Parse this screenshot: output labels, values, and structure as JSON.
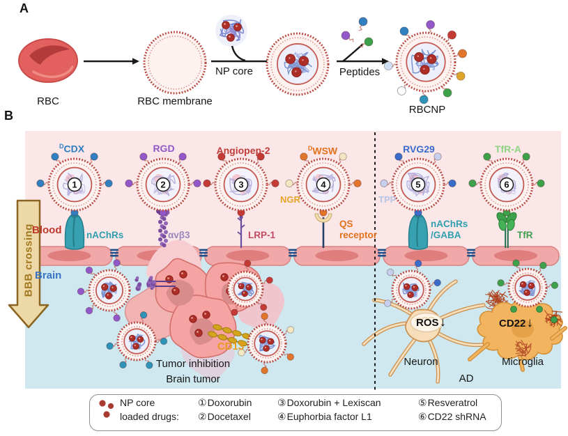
{
  "figure": {
    "panel_a_label": "A",
    "panel_b_label": "B"
  },
  "panel_a": {
    "rbc_label": "RBC",
    "rbc_membrane_label": "RBC membrane",
    "np_core_label": "NP core",
    "peptides_label": "Peptides",
    "rbcnp_label": "RBCNP"
  },
  "panel_b": {
    "bbb_arrow_label": "BBB crossing",
    "blood_label": "Blood",
    "brain_label": "Brain",
    "blood_color": "#c0392b",
    "brain_color": "#3a72c4",
    "nanoparticles": [
      {
        "number": "1",
        "circled": "①",
        "ligand_sup": "D",
        "ligand": "CDX",
        "ligand_color": "#2b7ec1",
        "peptide_color": "#2f7fc1",
        "receptor_line1": "nAChRs",
        "receptor_line2": "",
        "receptor_color": "#2e9fae",
        "receptor_type": "nachr"
      },
      {
        "number": "2",
        "circled": "②",
        "ligand_sup": "",
        "ligand": "RGD",
        "ligand_color": "#9257c8",
        "peptide_color": "#9257c8",
        "receptor_line1": "αvβ3",
        "receptor_line2": "",
        "receptor_color": "#9a87bd",
        "receptor_type": "avb3"
      },
      {
        "number": "3",
        "circled": "③",
        "ligand_sup": "",
        "ligand": "Angiopep-2",
        "ligand_color": "#c23b38",
        "peptide_color": "#c43a34",
        "receptor_line1": "LRP-1",
        "receptor_line2": "",
        "receptor_color": "#c24b62",
        "receptor_type": "lrp1"
      },
      {
        "number": "4",
        "circled": "④",
        "ligand_sup": "D",
        "ligand": "WSW",
        "ligand_color": "#e2711d",
        "peptide_color": "#e2752c",
        "peptide_color2": "#f4e7c3",
        "secondary_ligand": "NGR",
        "secondary_color": "#e5a426",
        "receptor_line1": "QS",
        "receptor_line2": "receptor",
        "receptor_color": "#e2711d",
        "receptor_type": "qs"
      },
      {
        "number": "5",
        "circled": "⑤",
        "ligand_sup": "",
        "ligand": "RVG29",
        "ligand_color": "#3a6ccc",
        "peptide_color": "#3a6ccc",
        "peptide_color2": "#c6cfeb",
        "secondary_ligand": "TPP",
        "secondary_color": "#b8c3e6",
        "receptor_line1": "nAChRs",
        "receptor_line2": "/GABA",
        "receptor_color": "#2e9fae",
        "receptor_type": "nachr"
      },
      {
        "number": "6",
        "circled": "⑥",
        "ligand_sup": "",
        "ligand": "TfR-A",
        "ligand_color": "#8ed383",
        "peptide_color": "#3da14b",
        "receptor_line1": "TfR",
        "receptor_line2": "",
        "receptor_color": "#3f9e4e",
        "receptor_type": "tfr"
      }
    ],
    "brain_section": {
      "cd13_label": "CD13",
      "cd13_color": "#e89a1f",
      "tumor_inhibition_label": "Tumor inhibition",
      "brain_tumor_label": "Brain tumor",
      "ros_label": "ROS",
      "cd22_label": "CD22",
      "down_arrow": "↓",
      "neuron_label": "Neuron",
      "microglia_label": "Microglia",
      "ad_label": "AD"
    }
  },
  "legend": {
    "np_core_label": "NP core",
    "loaded_drugs_label": "loaded drugs:",
    "drugs": [
      {
        "num": "①",
        "name": "Doxorubin"
      },
      {
        "num": "②",
        "name": "Docetaxel"
      },
      {
        "num": "③",
        "name": "Doxorubin + Lexiscan"
      },
      {
        "num": "④",
        "name": "Euphorbia factor L1"
      },
      {
        "num": "⑤",
        "name": "Resveratrol"
      },
      {
        "num": "⑥",
        "name": "CD22 shRNA"
      }
    ]
  },
  "colors": {
    "panel_pink": "#fbe7e8",
    "panel_blue": "#cfe8ef",
    "vessel_cell": "#f1a8a8",
    "vessel_nucleus": "#e07e7e",
    "tight_junction": "#1d4f8a",
    "membrane_red": "#b5443c",
    "np_interior": "#f3f1fa",
    "drug_dot_red": "#ad2d27",
    "bbb_arrow_fill": "#edd8a8",
    "bbb_arrow_border": "#8a6420",
    "tumor_cell": "#f5a3a3",
    "neuron_fill": "#f7ddb9",
    "microglia_fill": "#f3b45f",
    "amyloid": "#ad431d",
    "cd13_gold": "#d3a41c"
  }
}
